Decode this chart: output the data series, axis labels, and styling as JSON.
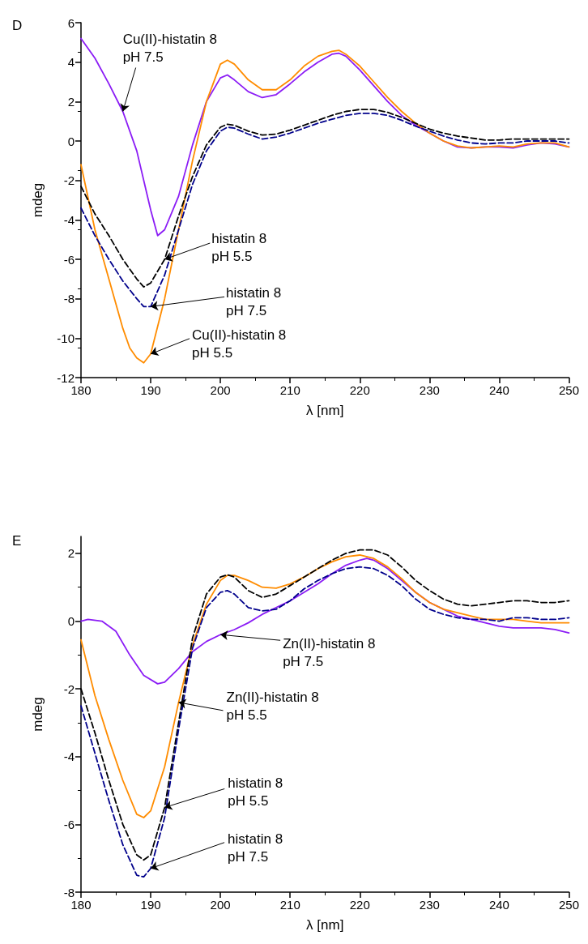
{
  "chart_data": [
    {
      "type": "line",
      "title": "D",
      "xlabel": "λ [nm]",
      "ylabel": "mdeg",
      "xlim": [
        180,
        250
      ],
      "xticks": [
        180,
        190,
        200,
        210,
        220,
        230,
        240,
        250
      ],
      "ylim": [
        -12,
        6
      ],
      "yticks": [
        -12,
        -10,
        -8,
        -6,
        -4,
        -2,
        0,
        2,
        4,
        6
      ],
      "grid": false,
      "marker": "none",
      "series": [
        {
          "color": "#8b1cf5",
          "line_style": "solid",
          "x": [
            180,
            182,
            184,
            186,
            188,
            190,
            191,
            192,
            194,
            196,
            198,
            200,
            201,
            202,
            204,
            206,
            208,
            210,
            212,
            214,
            216,
            217,
            218,
            220,
            222,
            224,
            226,
            228,
            230,
            232,
            234,
            236,
            238,
            240,
            242,
            244,
            246,
            248,
            250
          ],
          "values": [
            5.2,
            4.2,
            2.9,
            1.5,
            -0.5,
            -3.5,
            -4.8,
            -4.5,
            -2.8,
            -0.2,
            2.0,
            3.2,
            3.35,
            3.1,
            2.5,
            2.2,
            2.35,
            2.9,
            3.5,
            4.0,
            4.4,
            4.45,
            4.3,
            3.6,
            2.8,
            2.0,
            1.3,
            0.8,
            0.4,
            0,
            -0.3,
            -0.35,
            -0.3,
            -0.3,
            -0.35,
            -0.2,
            -0.1,
            -0.15,
            -0.3
          ]
        },
        {
          "color": "#ff8c00",
          "line_style": "solid",
          "x": [
            180,
            182,
            184,
            186,
            187,
            188,
            189,
            190,
            192,
            194,
            196,
            198,
            200,
            201,
            202,
            204,
            206,
            208,
            210,
            212,
            214,
            216,
            217,
            218,
            220,
            222,
            224,
            226,
            228,
            230,
            232,
            234,
            236,
            238,
            240,
            242,
            244,
            246,
            248,
            250
          ],
          "values": [
            -1.2,
            -4.5,
            -7.0,
            -9.5,
            -10.5,
            -11.0,
            -11.25,
            -10.8,
            -8.0,
            -4.5,
            -1.0,
            2.0,
            3.9,
            4.1,
            3.9,
            3.1,
            2.6,
            2.6,
            3.1,
            3.8,
            4.3,
            4.55,
            4.6,
            4.4,
            3.8,
            3.0,
            2.2,
            1.5,
            0.9,
            0.4,
            0,
            -0.25,
            -0.35,
            -0.3,
            -0.25,
            -0.3,
            -0.15,
            -0.1,
            -0.1,
            -0.3
          ]
        },
        {
          "color": "#000000",
          "line_style": "dashed",
          "x": [
            180,
            182,
            184,
            186,
            188,
            189,
            190,
            192,
            194,
            196,
            198,
            200,
            201,
            202,
            204,
            206,
            208,
            210,
            212,
            214,
            216,
            218,
            220,
            222,
            224,
            226,
            228,
            230,
            232,
            234,
            236,
            238,
            240,
            242,
            244,
            246,
            248,
            250
          ],
          "values": [
            -2.3,
            -3.7,
            -4.8,
            -6.0,
            -7.0,
            -7.4,
            -7.2,
            -6.0,
            -3.8,
            -1.8,
            -0.2,
            0.7,
            0.85,
            0.8,
            0.5,
            0.3,
            0.35,
            0.55,
            0.8,
            1.05,
            1.3,
            1.5,
            1.6,
            1.6,
            1.45,
            1.2,
            0.9,
            0.6,
            0.4,
            0.25,
            0.15,
            0.05,
            0.05,
            0.1,
            0.1,
            0.1,
            0.1,
            0.1
          ]
        },
        {
          "color": "#00008b",
          "line_style": "dashed",
          "x": [
            180,
            182,
            184,
            186,
            188,
            189,
            190,
            192,
            194,
            196,
            198,
            200,
            201,
            202,
            204,
            206,
            208,
            210,
            212,
            214,
            216,
            218,
            220,
            222,
            224,
            226,
            228,
            230,
            232,
            234,
            236,
            238,
            240,
            242,
            244,
            246,
            248,
            250
          ],
          "values": [
            -3.4,
            -4.8,
            -6.0,
            -7.1,
            -8.0,
            -8.4,
            -8.4,
            -6.8,
            -4.5,
            -2.2,
            -0.5,
            0.5,
            0.7,
            0.65,
            0.35,
            0.1,
            0.2,
            0.4,
            0.65,
            0.9,
            1.1,
            1.3,
            1.4,
            1.4,
            1.3,
            1.05,
            0.75,
            0.5,
            0.25,
            0.05,
            -0.1,
            -0.15,
            -0.1,
            -0.1,
            0,
            0,
            0,
            -0.1
          ]
        }
      ],
      "annotations": [
        {
          "text": "Cu(II)-histatin 8\npH 7.5",
          "x": 186,
          "y": 1.5
        },
        {
          "text": "histatin 8\npH 5.5",
          "x": 192,
          "y": -6.0
        },
        {
          "text": "histatin 8\npH 7.5",
          "x": 190,
          "y": -8.4
        },
        {
          "text": "Cu(II)-histatin 8\npH 5.5",
          "x": 190,
          "y": -10.8
        }
      ]
    },
    {
      "type": "line",
      "title": "E",
      "xlabel": "λ [nm]",
      "ylabel": "mdeg",
      "xlim": [
        180,
        250
      ],
      "xticks": [
        180,
        190,
        200,
        210,
        220,
        230,
        240,
        250
      ],
      "ylim": [
        -8,
        2.5
      ],
      "yticks": [
        -8,
        -6,
        -4,
        -2,
        0,
        2
      ],
      "grid": false,
      "marker": "none",
      "series": [
        {
          "color": "#8b1cf5",
          "line_style": "solid",
          "x": [
            180,
            181,
            183,
            185,
            187,
            189,
            191,
            192,
            194,
            196,
            198,
            200,
            202,
            204,
            206,
            208,
            210,
            212,
            214,
            216,
            218,
            220,
            221,
            222,
            224,
            226,
            228,
            230,
            232,
            234,
            236,
            238,
            240,
            242,
            244,
            246,
            248,
            250
          ],
          "values": [
            0,
            0.05,
            0,
            -0.3,
            -1.0,
            -1.6,
            -1.85,
            -1.8,
            -1.4,
            -0.9,
            -0.6,
            -0.4,
            -0.25,
            -0.05,
            0.2,
            0.4,
            0.6,
            0.85,
            1.1,
            1.4,
            1.65,
            1.8,
            1.85,
            1.8,
            1.55,
            1.2,
            0.85,
            0.55,
            0.35,
            0.15,
            0.05,
            -0.05,
            -0.15,
            -0.2,
            -0.2,
            -0.2,
            -0.25,
            -0.35
          ]
        },
        {
          "color": "#ff8c00",
          "line_style": "solid",
          "x": [
            180,
            182,
            184,
            186,
            188,
            189,
            190,
            192,
            194,
            196,
            198,
            200,
            201,
            202,
            204,
            206,
            208,
            210,
            212,
            214,
            216,
            218,
            220,
            222,
            224,
            226,
            228,
            230,
            232,
            234,
            236,
            238,
            240,
            242,
            244,
            246,
            248,
            250
          ],
          "values": [
            -0.55,
            -2.2,
            -3.5,
            -4.7,
            -5.7,
            -5.8,
            -5.6,
            -4.3,
            -2.4,
            -0.7,
            0.5,
            1.2,
            1.35,
            1.35,
            1.2,
            1.0,
            0.97,
            1.1,
            1.3,
            1.55,
            1.75,
            1.9,
            1.95,
            1.85,
            1.6,
            1.25,
            0.85,
            0.55,
            0.35,
            0.25,
            0.15,
            0.05,
            0.05,
            0.05,
            0,
            -0.05,
            -0.05,
            -0.05
          ]
        },
        {
          "color": "#000000",
          "line_style": "dashed",
          "x": [
            180,
            182,
            184,
            186,
            188,
            189,
            190,
            192,
            194,
            196,
            198,
            200,
            201,
            202,
            204,
            206,
            208,
            210,
            212,
            214,
            216,
            218,
            220,
            222,
            224,
            226,
            228,
            230,
            232,
            234,
            236,
            238,
            240,
            242,
            244,
            246,
            248,
            250
          ],
          "values": [
            -2.0,
            -3.3,
            -4.7,
            -6.0,
            -6.9,
            -7.05,
            -6.9,
            -5.5,
            -3.0,
            -0.5,
            0.8,
            1.3,
            1.37,
            1.3,
            0.9,
            0.7,
            0.8,
            1.05,
            1.3,
            1.55,
            1.8,
            2.0,
            2.1,
            2.1,
            1.95,
            1.6,
            1.2,
            0.9,
            0.65,
            0.5,
            0.45,
            0.5,
            0.55,
            0.6,
            0.6,
            0.55,
            0.55,
            0.6
          ]
        },
        {
          "color": "#00008b",
          "line_style": "dashed",
          "x": [
            180,
            182,
            184,
            186,
            188,
            189,
            190,
            192,
            194,
            196,
            198,
            200,
            201,
            202,
            204,
            206,
            208,
            210,
            212,
            214,
            216,
            218,
            220,
            222,
            224,
            226,
            228,
            230,
            232,
            234,
            236,
            238,
            240,
            242,
            244,
            246,
            248,
            250
          ],
          "values": [
            -2.5,
            -3.9,
            -5.3,
            -6.6,
            -7.5,
            -7.55,
            -7.3,
            -5.8,
            -3.2,
            -0.8,
            0.4,
            0.85,
            0.9,
            0.8,
            0.4,
            0.3,
            0.35,
            0.6,
            0.95,
            1.2,
            1.4,
            1.55,
            1.6,
            1.55,
            1.35,
            1.05,
            0.65,
            0.35,
            0.2,
            0.1,
            0.05,
            0.05,
            0,
            0.1,
            0.1,
            0.05,
            0.05,
            0.1
          ]
        }
      ],
      "annotations": [
        {
          "text": "Zn(II)-histatin 8\npH 7.5",
          "x": 200,
          "y": -0.4
        },
        {
          "text": "Zn(II)-histatin 8\npH 5.5",
          "x": 194,
          "y": -2.4
        },
        {
          "text": "histatin 8\npH 5.5",
          "x": 192,
          "y": -5.5
        },
        {
          "text": "histatin 8\npH 7.5",
          "x": 190,
          "y": -7.3
        }
      ]
    }
  ]
}
